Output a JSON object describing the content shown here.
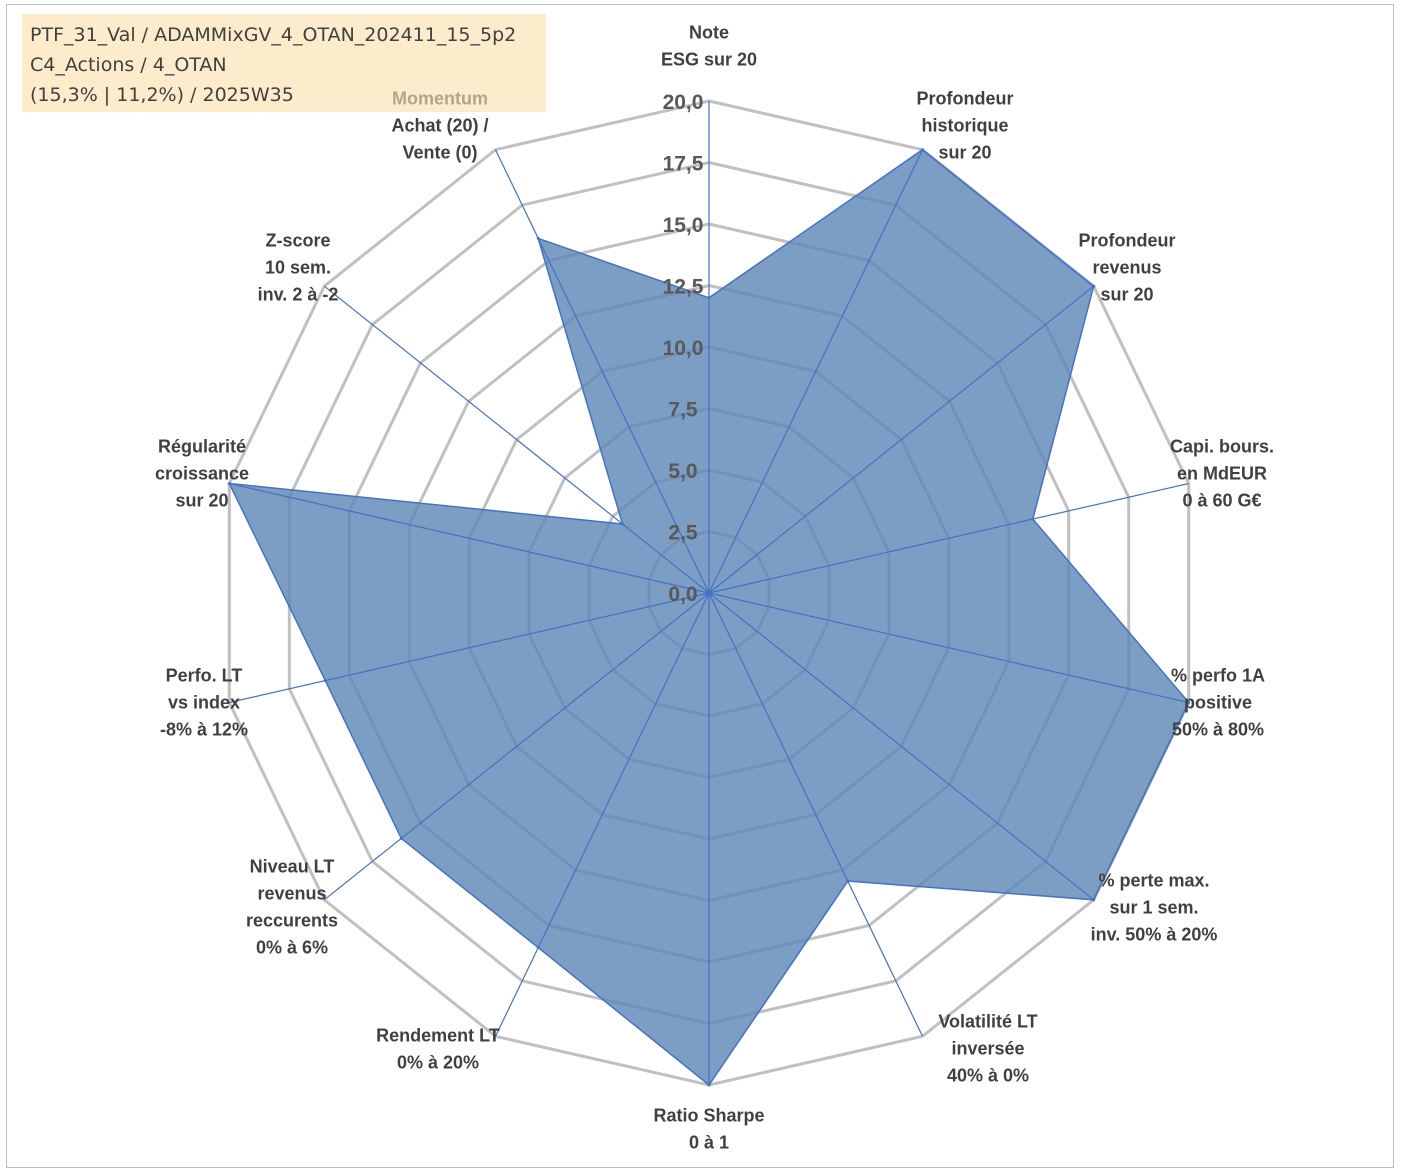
{
  "info": {
    "line1": "PTF_31_Val / ADAMMixGV_4_OTAN_202411_15_5p2",
    "line2": "C4_Actions / 4_OTAN",
    "line3": "(15,3% | 11,2%) / 2025W35"
  },
  "colors": {
    "grid": "#c0c0c0",
    "spoke": "#4472c4",
    "fill": "#5b84b5",
    "fill_opacity": 0.8
  },
  "chart_data": {
    "type": "radar",
    "title": "",
    "ylim": [
      0,
      20
    ],
    "tick_labels": [
      "0,0",
      "2,5",
      "5,0",
      "7,5",
      "10,0",
      "12,5",
      "15,0",
      "17,5",
      "20,0"
    ],
    "axes": [
      {
        "lines": [
          "Note",
          "ESG sur 20"
        ]
      },
      {
        "lines": [
          "Profondeur",
          "historique",
          "sur 20"
        ]
      },
      {
        "lines": [
          "Profondeur",
          "revenus",
          "sur 20"
        ]
      },
      {
        "lines": [
          "Capi. bours.",
          "en MdEUR",
          "0 à 60 G€"
        ]
      },
      {
        "lines": [
          "% perfo 1A",
          "positive",
          "50% à 80%"
        ]
      },
      {
        "lines": [
          "% perte max.",
          "sur 1 sem.",
          "inv. 50% à 20%"
        ]
      },
      {
        "lines": [
          "Volatilité LT",
          "inversée",
          "40% à 0%"
        ]
      },
      {
        "lines": [
          "Ratio Sharpe",
          "0 à 1"
        ]
      },
      {
        "lines": [
          "Rendement LT",
          "0% à 20%"
        ]
      },
      {
        "lines": [
          "Niveau LT",
          "revenus",
          "reccurents",
          "0% à 6%"
        ]
      },
      {
        "lines": [
          "Perfo. LT",
          "vs index",
          "-8% à 12%"
        ]
      },
      {
        "lines": [
          "Régularité",
          "croissance",
          "sur 20"
        ]
      },
      {
        "lines": [
          "Z-score",
          "10 sem.",
          "inv. 2 à -2"
        ]
      },
      {
        "lines": [
          "Momentum",
          "Achat (20) /",
          "Vente (0)"
        ],
        "dim_first_line": true
      }
    ],
    "series": [
      {
        "values": [
          12.0,
          20.0,
          20.0,
          13.5,
          20.0,
          20.0,
          13.0,
          20.0,
          16.0,
          16.0,
          16.0,
          20.0,
          4.5,
          16.0
        ]
      }
    ]
  }
}
